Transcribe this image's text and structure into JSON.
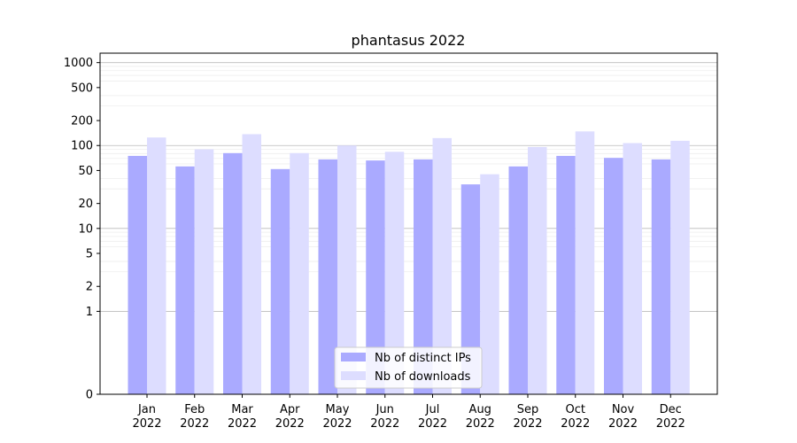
{
  "chart_data": {
    "type": "bar",
    "title": "phantasus 2022",
    "xlabel": "",
    "ylabel": "",
    "y_scale": "symlog",
    "ylim": [
      0,
      1300
    ],
    "y_ticks": [
      0,
      1,
      2,
      5,
      10,
      20,
      50,
      100,
      200,
      500,
      1000
    ],
    "categories": [
      "Jan\n2022",
      "Feb\n2022",
      "Mar\n2022",
      "Apr\n2022",
      "May\n2022",
      "Jun\n2022",
      "Jul\n2022",
      "Aug\n2022",
      "Sep\n2022",
      "Oct\n2022",
      "Nov\n2022",
      "Dec\n2022"
    ],
    "series": [
      {
        "name": "Nb of distinct IPs",
        "color": "#aaaaff",
        "values": [
          75,
          56,
          81,
          52,
          68,
          66,
          68,
          34,
          56,
          75,
          71,
          68
        ]
      },
      {
        "name": "Nb of downloads",
        "color": "#ddddff",
        "values": [
          125,
          90,
          137,
          81,
          100,
          84,
          123,
          45,
          96,
          148,
          107,
          114
        ]
      }
    ],
    "grid": true,
    "legend_position": "bottom-center"
  }
}
